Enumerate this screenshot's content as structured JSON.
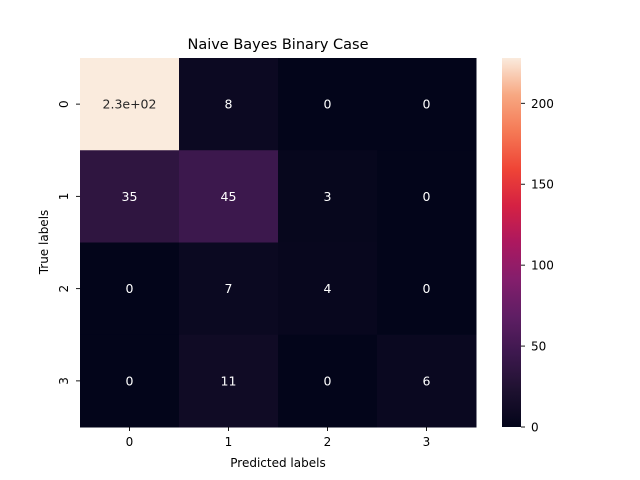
{
  "chart_data": {
    "type": "heatmap",
    "title": "Naive Bayes Binary Case",
    "xlabel": "Predicted labels",
    "ylabel": "True labels",
    "x_categories": [
      "0",
      "1",
      "2",
      "3"
    ],
    "y_categories": [
      "0",
      "1",
      "2",
      "3"
    ],
    "matrix": [
      [
        228,
        8,
        0,
        0
      ],
      [
        35,
        45,
        3,
        0
      ],
      [
        0,
        7,
        4,
        0
      ],
      [
        0,
        11,
        0,
        6
      ]
    ],
    "cell_labels": [
      [
        "2.3e+02",
        "8",
        "0",
        "0"
      ],
      [
        "35",
        "45",
        "3",
        "0"
      ],
      [
        "0",
        "7",
        "4",
        "0"
      ],
      [
        "0",
        "11",
        "0",
        "6"
      ]
    ],
    "colormap": "rocket",
    "colorbar": {
      "range": [
        0,
        228
      ],
      "ticks": [
        0,
        50,
        100,
        150,
        200
      ]
    }
  }
}
